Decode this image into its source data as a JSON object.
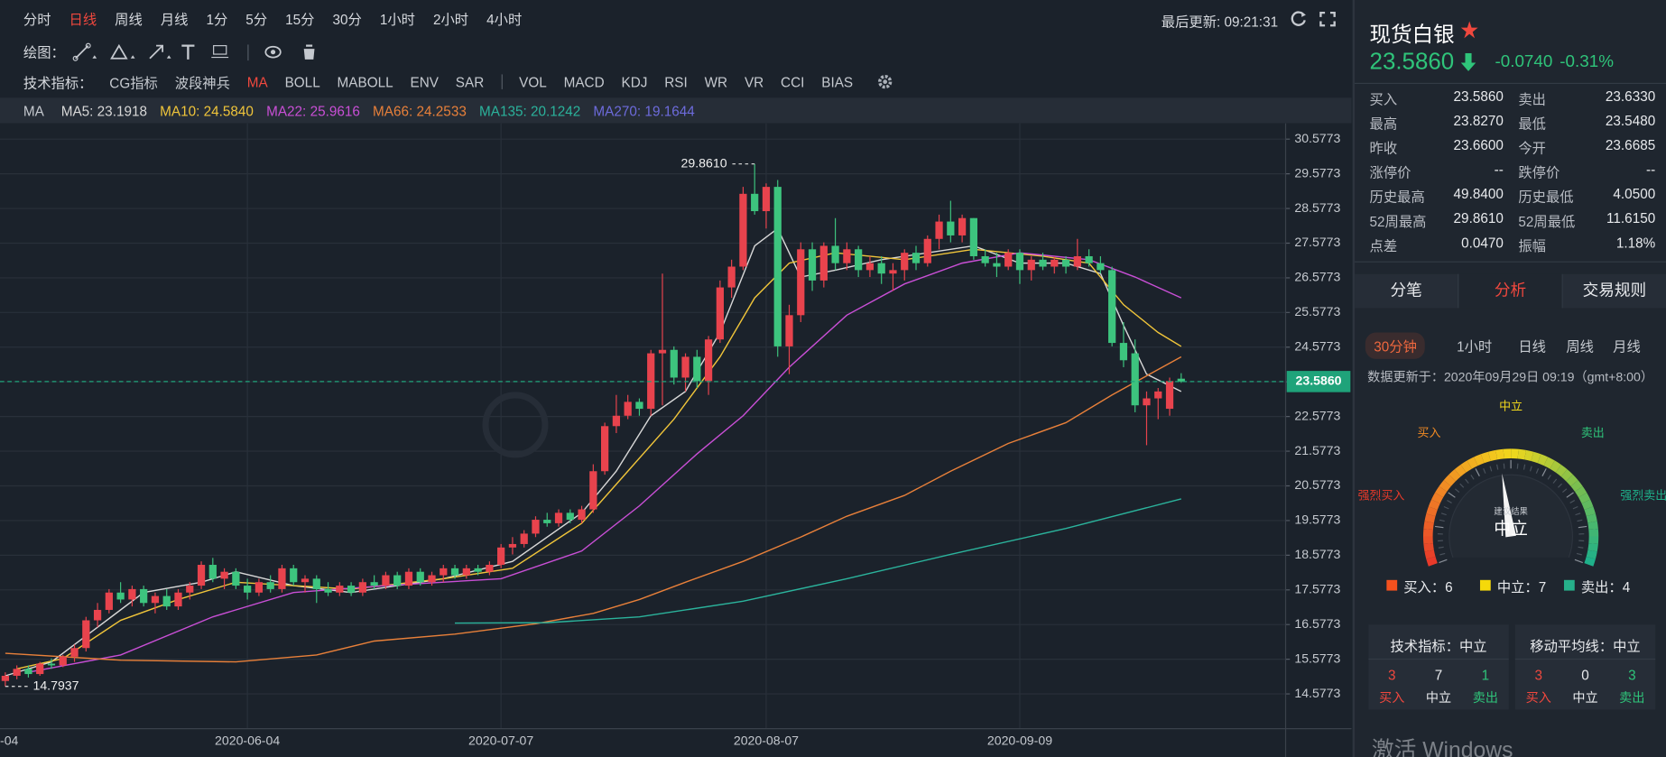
{
  "toolbar": {
    "periods": [
      "分时",
      "日线",
      "周线",
      "月线",
      "1分",
      "5分",
      "15分",
      "30分",
      "1小时",
      "2小时",
      "4小时"
    ],
    "active_period": 1,
    "last_update": "最后更新: 09:21:31",
    "draw_label": "绘图：",
    "indicator_label": "技术指标：",
    "indicators_a": [
      "CG指标",
      "波段神兵",
      "MA",
      "BOLL",
      "MABOLL",
      "ENV",
      "SAR"
    ],
    "indicators_b": [
      "VOL",
      "MACD",
      "KDJ",
      "RSI",
      "WR",
      "VR",
      "CCI",
      "BIAS"
    ],
    "active_indicator": 2
  },
  "ma_legend": {
    "title": "MA",
    "items": [
      {
        "label": "MA5: 23.1918",
        "color": "#d8d8d8"
      },
      {
        "label": "MA10: 24.5840",
        "color": "#f0c53a"
      },
      {
        "label": "MA22: 25.9616",
        "color": "#c94fd6"
      },
      {
        "label": "MA66: 24.2533",
        "color": "#e8803a"
      },
      {
        "label": "MA135: 20.1242",
        "color": "#2bb39c"
      },
      {
        "label": "MA270: 19.1644",
        "color": "#6d6bdc"
      }
    ]
  },
  "chart_data": {
    "type": "candlestick",
    "categories": [
      "-04",
      null,
      null,
      null,
      null,
      null,
      null,
      null,
      null,
      null,
      null,
      null,
      null,
      null,
      null,
      null,
      null,
      null,
      null,
      null,
      null,
      "2020-06-04",
      null,
      null,
      null,
      null,
      null,
      null,
      null,
      null,
      null,
      null,
      null,
      null,
      null,
      null,
      null,
      null,
      null,
      null,
      null,
      null,
      null,
      "2020-07-07",
      null,
      null,
      null,
      null,
      null,
      null,
      null,
      null,
      null,
      null,
      null,
      null,
      null,
      null,
      null,
      null,
      null,
      null,
      null,
      null,
      null,
      null,
      "2020-08-07",
      null,
      null,
      null,
      null,
      null,
      null,
      null,
      null,
      null,
      null,
      null,
      null,
      null,
      null,
      null,
      null,
      null,
      null,
      null,
      null,
      null,
      "2020-09-09",
      null,
      null,
      null,
      null,
      null,
      null,
      null,
      null,
      null,
      null,
      null,
      null,
      null,
      null
    ],
    "open": [
      14.95,
      15.1,
      15.3,
      15.15,
      15.45,
      15.4,
      15.65,
      15.9,
      16.7,
      17.0,
      17.5,
      17.3,
      17.6,
      17.2,
      17.4,
      17.1,
      17.5,
      17.7,
      18.3,
      17.9,
      18.1,
      17.7,
      17.5,
      17.8,
      17.6,
      18.2,
      17.8,
      17.9,
      17.6,
      17.5,
      17.7,
      17.5,
      17.8,
      17.7,
      18.0,
      17.7,
      18.1,
      17.8,
      18.0,
      18.2,
      18.0,
      18.2,
      18.1,
      18.3,
      18.8,
      18.9,
      19.2,
      19.6,
      19.5,
      19.8,
      19.6,
      19.9,
      21.0,
      22.3,
      22.6,
      23.0,
      22.8,
      24.4,
      24.5,
      23.7,
      24.3,
      23.6,
      24.8,
      26.3,
      26.9,
      29.0,
      28.5,
      29.2,
      24.6,
      25.5,
      27.4,
      26.5,
      27.5,
      27.0,
      27.4,
      26.8,
      27.0,
      26.7,
      26.8,
      27.3,
      27.0,
      27.7,
      28.2,
      27.8,
      28.3,
      27.2,
      27.0,
      26.9,
      27.3,
      26.8,
      27.1,
      26.9,
      27.1,
      26.9,
      27.2,
      27.0,
      26.8,
      24.7,
      24.4,
      22.9,
      23.1,
      22.8,
      23.6685
    ],
    "high": [
      15.2,
      15.4,
      15.4,
      15.5,
      15.6,
      15.7,
      16.0,
      16.8,
      17.2,
      17.6,
      17.8,
      17.7,
      17.7,
      17.5,
      17.6,
      17.6,
      17.8,
      18.4,
      18.5,
      18.2,
      18.2,
      17.9,
      17.9,
      18.0,
      18.3,
      18.3,
      18.0,
      18.0,
      17.8,
      17.8,
      17.8,
      17.9,
      18.0,
      18.1,
      18.1,
      18.2,
      18.2,
      18.1,
      18.3,
      18.3,
      18.3,
      18.3,
      18.4,
      18.9,
      19.1,
      19.3,
      19.7,
      19.8,
      19.9,
      19.9,
      20.0,
      21.2,
      22.4,
      23.2,
      23.2,
      23.1,
      24.5,
      26.7,
      24.6,
      24.4,
      24.5,
      24.9,
      26.5,
      27.1,
      29.2,
      29.861,
      29.3,
      29.4,
      25.8,
      27.6,
      27.6,
      27.6,
      28.3,
      27.6,
      27.5,
      27.2,
      27.2,
      27.0,
      27.4,
      27.5,
      27.8,
      28.4,
      28.8,
      28.4,
      28.3,
      27.4,
      27.3,
      27.4,
      27.4,
      27.2,
      27.3,
      27.2,
      27.2,
      27.7,
      27.4,
      27.2,
      26.9,
      25.3,
      24.8,
      23.3,
      23.4,
      23.7,
      23.827
    ],
    "low": [
      14.7937,
      15.0,
      15.05,
      15.1,
      15.3,
      15.35,
      15.5,
      15.8,
      16.5,
      16.9,
      17.2,
      17.1,
      17.1,
      16.9,
      17.0,
      17.0,
      17.3,
      17.6,
      17.8,
      17.6,
      17.6,
      17.3,
      17.4,
      17.5,
      17.5,
      17.7,
      17.5,
      17.2,
      17.4,
      17.4,
      17.4,
      17.4,
      17.6,
      17.6,
      17.6,
      17.6,
      17.7,
      17.7,
      17.8,
      17.9,
      17.9,
      18.0,
      18.0,
      18.2,
      18.6,
      18.8,
      19.1,
      19.4,
      19.4,
      19.5,
      19.5,
      19.8,
      20.9,
      22.1,
      22.5,
      22.6,
      22.6,
      22.9,
      23.5,
      23.3,
      23.4,
      23.2,
      24.7,
      26.0,
      26.8,
      28.4,
      28.0,
      24.3,
      23.8,
      25.3,
      26.2,
      26.3,
      26.8,
      26.8,
      26.6,
      26.6,
      26.4,
      26.2,
      26.5,
      26.8,
      26.9,
      27.4,
      27.6,
      27.6,
      27.1,
      26.9,
      26.6,
      26.8,
      26.4,
      26.5,
      26.8,
      26.7,
      26.7,
      26.8,
      26.9,
      26.7,
      24.6,
      24.0,
      22.7,
      21.75,
      22.5,
      22.6,
      23.548
    ],
    "close": [
      15.1,
      15.3,
      15.15,
      15.45,
      15.4,
      15.65,
      15.9,
      16.7,
      17.0,
      17.5,
      17.3,
      17.6,
      17.2,
      17.4,
      17.1,
      17.5,
      17.7,
      18.3,
      17.9,
      18.1,
      17.7,
      17.5,
      17.8,
      17.6,
      18.2,
      17.8,
      17.9,
      17.6,
      17.5,
      17.7,
      17.5,
      17.8,
      17.7,
      18.0,
      17.7,
      18.1,
      17.8,
      18.0,
      18.2,
      18.0,
      18.2,
      18.1,
      18.3,
      18.8,
      18.9,
      19.2,
      19.6,
      19.5,
      19.8,
      19.6,
      19.9,
      21.0,
      22.3,
      22.6,
      23.0,
      22.8,
      24.4,
      24.5,
      23.7,
      24.3,
      23.6,
      24.8,
      26.3,
      26.9,
      29.0,
      28.5,
      29.2,
      24.6,
      25.5,
      27.4,
      26.5,
      27.5,
      27.0,
      27.4,
      26.8,
      27.0,
      26.7,
      26.8,
      27.3,
      27.0,
      27.7,
      28.2,
      27.8,
      28.3,
      27.2,
      27.0,
      26.9,
      27.3,
      26.8,
      27.1,
      26.9,
      27.1,
      26.9,
      27.2,
      27.0,
      26.8,
      24.7,
      24.2,
      22.9,
      23.1,
      23.3,
      23.6,
      23.586
    ],
    "up_color": "#e8434d",
    "down_color": "#3dc47e",
    "lines": [
      {
        "color": "#d8d8d8",
        "x": [
          0,
          4,
          8,
          12,
          17,
          20,
          25,
          30,
          38,
          44,
          50,
          53,
          56,
          59,
          62,
          65,
          67,
          69,
          72,
          76,
          80,
          84,
          88,
          92,
          95,
          97,
          99,
          102
        ],
        "values": [
          15.1,
          15.5,
          16.5,
          17.5,
          17.8,
          18.1,
          17.7,
          17.5,
          17.9,
          18.4,
          19.8,
          21.0,
          22.6,
          23.3,
          25.0,
          27.5,
          28.0,
          26.6,
          26.8,
          27.1,
          27.3,
          27.5,
          27.0,
          27.0,
          26.7,
          25.2,
          23.8,
          23.3
        ]
      },
      {
        "color": "#f0c53a",
        "x": [
          1,
          5,
          10,
          15,
          20,
          25,
          30,
          38,
          44,
          50,
          54,
          58,
          62,
          65,
          68,
          72,
          78,
          84,
          90,
          94,
          97,
          100,
          102
        ],
        "values": [
          15.3,
          15.6,
          16.7,
          17.3,
          17.8,
          17.7,
          17.6,
          17.9,
          18.2,
          19.5,
          21.0,
          22.5,
          24.3,
          26.0,
          27.0,
          27.3,
          27.1,
          27.4,
          27.2,
          27.0,
          25.8,
          25.0,
          24.6
        ]
      },
      {
        "color": "#c94fd6",
        "x": [
          2,
          10,
          18,
          25,
          33,
          43,
          50,
          55,
          60,
          64,
          68,
          73,
          78,
          83,
          88,
          94,
          98,
          102
        ],
        "values": [
          15.2,
          15.7,
          16.8,
          17.5,
          17.7,
          17.9,
          18.7,
          20.0,
          21.5,
          22.6,
          24.0,
          25.5,
          26.4,
          27.0,
          27.3,
          27.1,
          26.6,
          26.0
        ]
      },
      {
        "color": "#e8803a",
        "x": [
          0,
          10,
          20,
          27,
          32,
          39,
          46,
          51,
          55,
          59,
          64,
          69,
          73,
          78,
          82,
          87,
          92,
          96,
          102
        ],
        "values": [
          15.75,
          15.55,
          15.5,
          15.7,
          16.1,
          16.3,
          16.6,
          16.9,
          17.3,
          17.8,
          18.4,
          19.1,
          19.7,
          20.3,
          21.0,
          21.8,
          22.4,
          23.2,
          24.3
        ]
      },
      {
        "color": "#2bb39c",
        "x": [
          39,
          47,
          55,
          64,
          73,
          82,
          92,
          102
        ],
        "values": [
          16.62,
          16.63,
          16.8,
          17.25,
          17.9,
          18.6,
          19.35,
          20.2
        ]
      }
    ],
    "annotations": [
      {
        "label": "29.8610",
        "x": 65,
        "value": 29.861
      },
      {
        "label": "14.7937",
        "x": 0,
        "value": 14.7937
      }
    ],
    "last_price": {
      "label": "23.5860",
      "value": 23.586,
      "color": "#1fa37a"
    },
    "ylim": [
      13.574,
      31.036
    ],
    "yticks": [
      30.5773,
      29.5773,
      28.5773,
      27.5773,
      26.5773,
      25.5773,
      24.5773,
      23.5773,
      22.5773,
      21.5773,
      20.5773,
      19.5773,
      18.5773,
      17.5773,
      16.5773,
      15.5773,
      14.5773
    ],
    "grid": true
  },
  "panel": {
    "title": "现货白银",
    "price": "23.5860",
    "change": "-0.0740",
    "change_pct": "-0.31%",
    "quote_rows": [
      [
        "买入",
        "23.5860",
        "卖出",
        "23.6330"
      ],
      [
        "最高",
        "23.8270",
        "最低",
        "23.5480"
      ],
      [
        "昨收",
        "23.6600",
        "今开",
        "23.6685"
      ],
      [
        "涨停价",
        "--",
        "跌停价",
        "--"
      ],
      [
        "历史最高",
        "49.8400",
        "历史最低",
        "4.0500"
      ],
      [
        "52周最高",
        "29.8610",
        "52周最低",
        "11.6150"
      ],
      [
        "点差",
        "0.0470",
        "振幅",
        "1.18%"
      ]
    ],
    "tabs": [
      "分笔",
      "分析",
      "交易规则"
    ],
    "active_tab": 1,
    "periods": [
      "30分钟",
      "1小时",
      "日线",
      "周线",
      "月线"
    ],
    "updated": "数据更新于：2020年09月29日 09:19（gmt+8:00）",
    "gauge": {
      "strong_buy": "强烈买入",
      "buy": "买入",
      "neutral": "中立",
      "sell": "卖出",
      "strong_sell": "强烈卖出",
      "caption": "建议结果",
      "result": "中立"
    },
    "counts": [
      {
        "label": "买入：6",
        "color": "#f4511e"
      },
      {
        "label": "中立：7",
        "color": "#f5d90a"
      },
      {
        "label": "卖出：4",
        "color": "#26b08a"
      }
    ],
    "summary": [
      {
        "title": "技术指标：中立",
        "values": [
          3,
          7,
          1
        ],
        "labels": [
          "买入",
          "中立",
          "卖出"
        ]
      },
      {
        "title": "移动平均线：中立",
        "values": [
          3,
          0,
          3
        ],
        "labels": [
          "买入",
          "中立",
          "卖出"
        ]
      }
    ],
    "watermark": "激活 Windows"
  }
}
